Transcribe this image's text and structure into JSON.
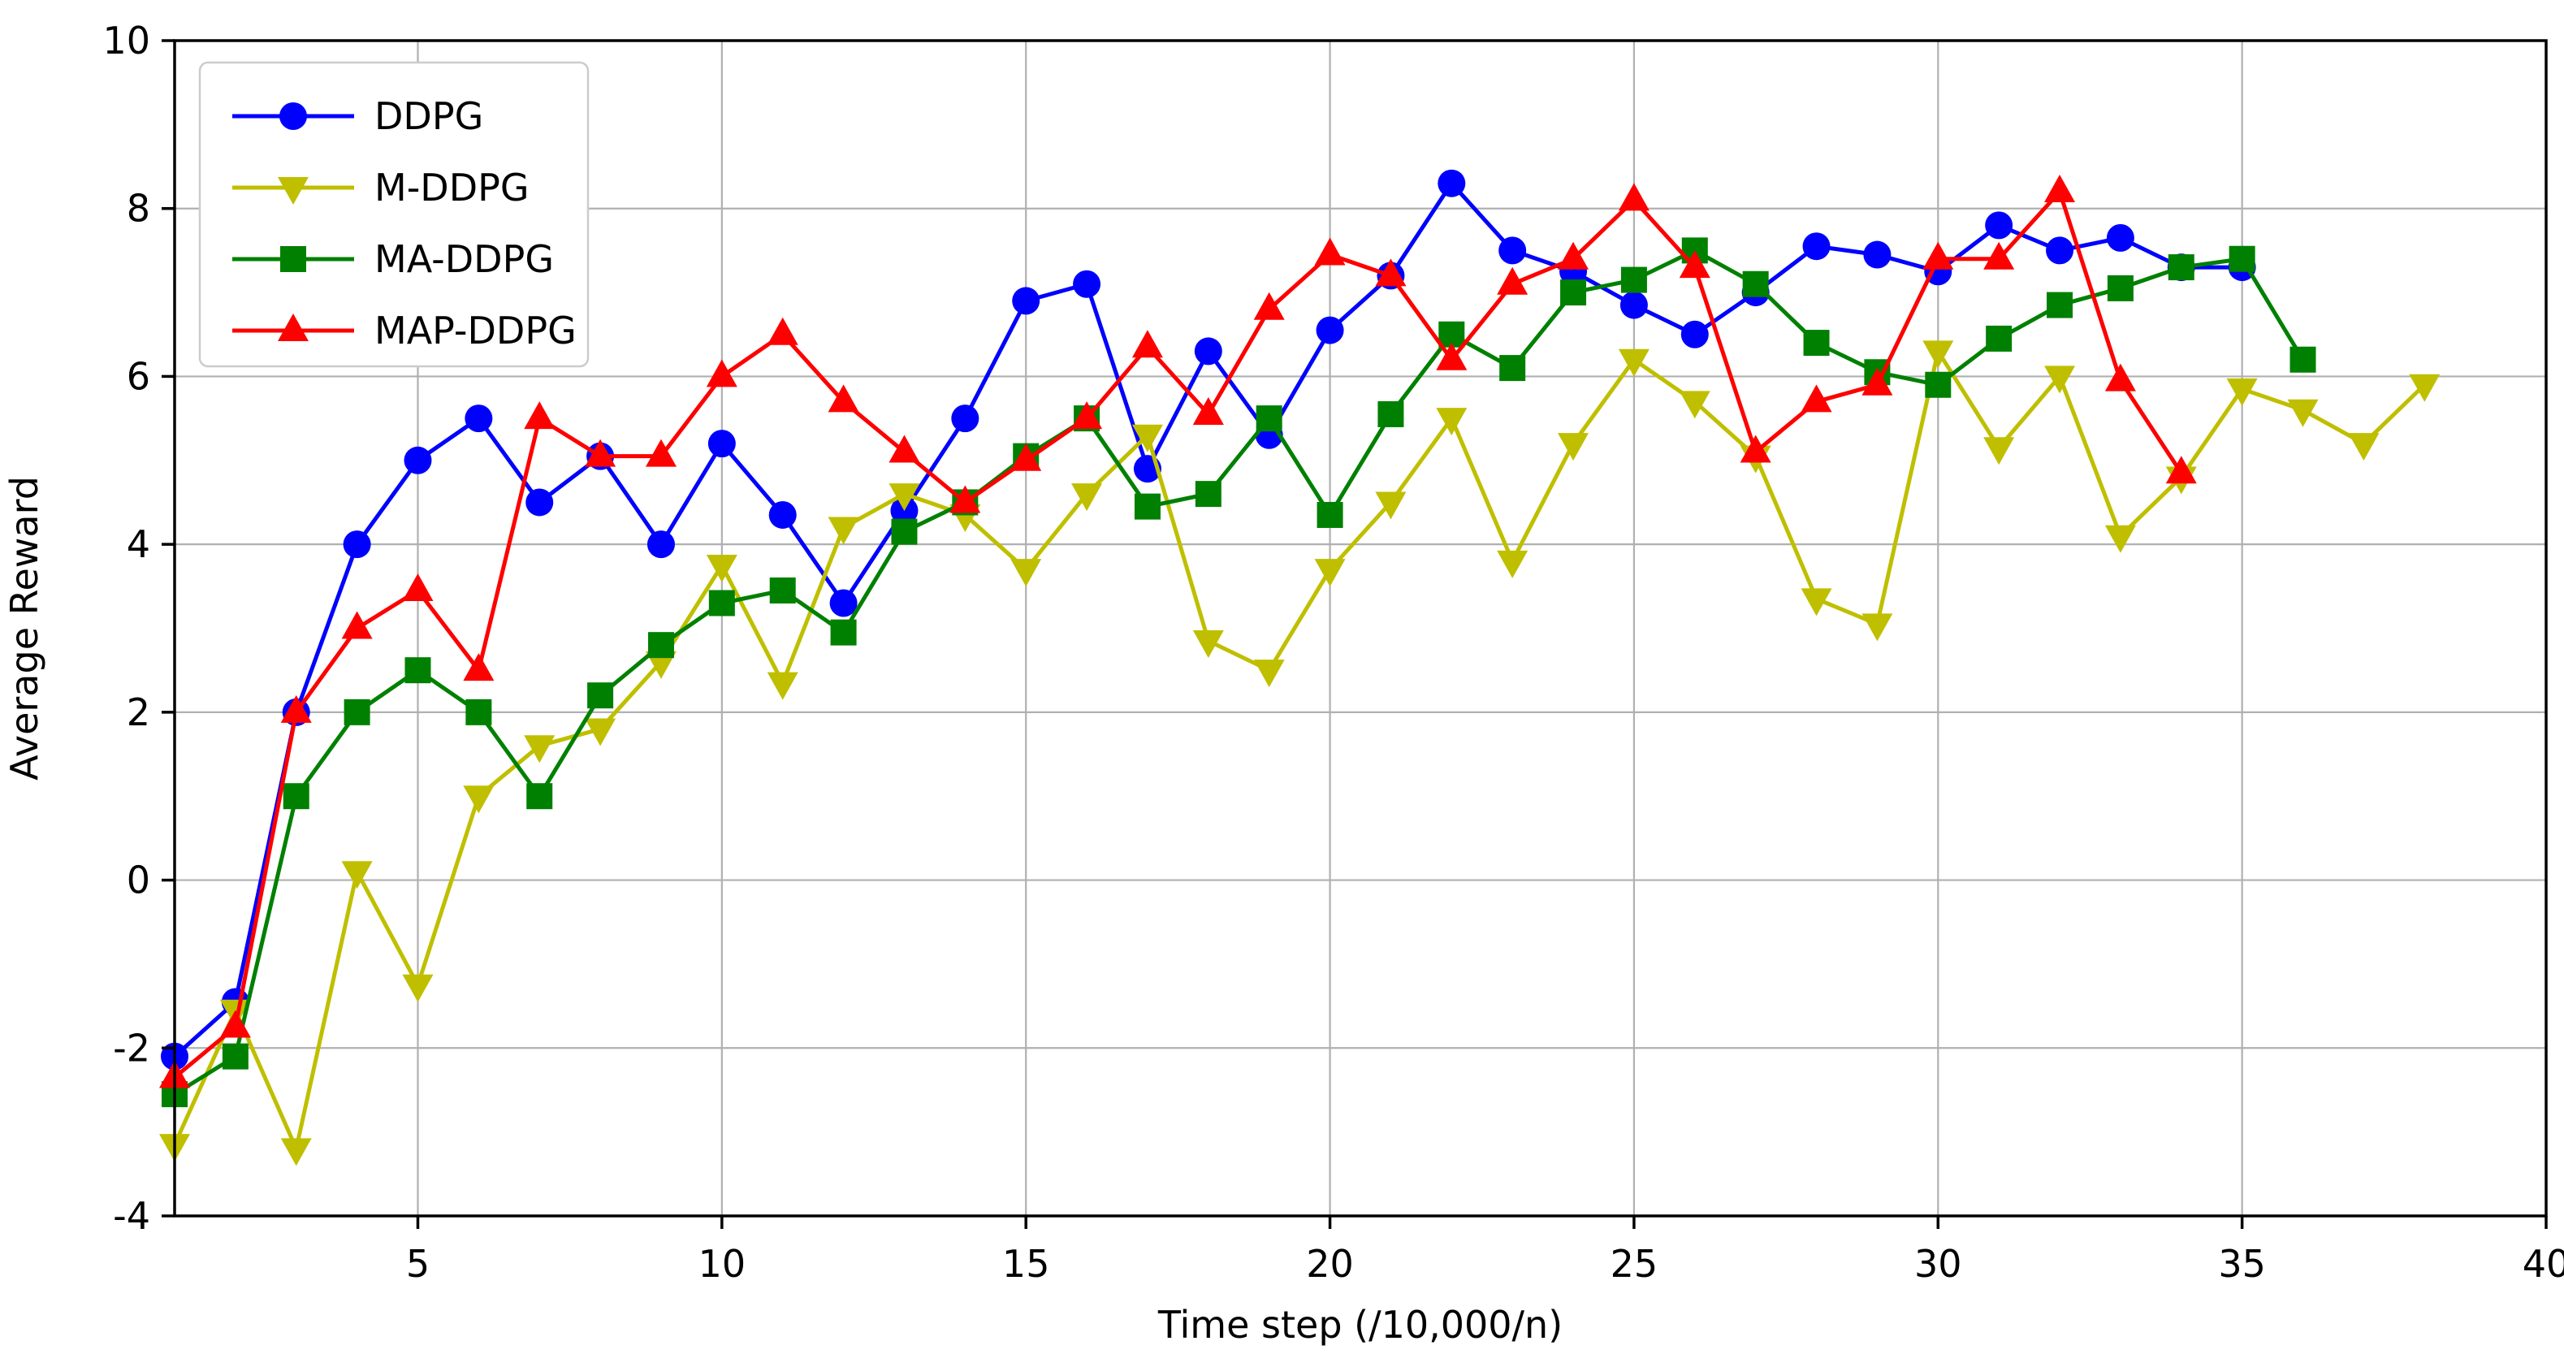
{
  "figure": {
    "background": "#ffffff",
    "grid_color": "#b0b0b0",
    "spine_color": "#000000"
  },
  "chart_data": {
    "type": "line",
    "title": "",
    "xlabel": "Time step (/10,000/n)",
    "ylabel": "Average Reward",
    "xlim": [
      1,
      40
    ],
    "ylim": [
      -4,
      10
    ],
    "xticks": [
      5,
      10,
      15,
      20,
      25,
      30,
      35,
      40
    ],
    "yticks": [
      -4,
      -2,
      0,
      2,
      4,
      6,
      8,
      10
    ],
    "grid": true,
    "legend_position": "upper-left",
    "x_start": 1,
    "x_step": 1,
    "series": [
      {
        "name": "DDPG",
        "color": "#0000ff",
        "marker": "circle",
        "values": [
          -2.1,
          -1.45,
          2.0,
          4.0,
          5.0,
          5.5,
          4.5,
          5.05,
          4.0,
          5.2,
          4.35,
          3.3,
          4.4,
          5.5,
          6.9,
          7.1,
          4.9,
          6.3,
          5.3,
          6.55,
          7.2,
          8.3,
          7.5,
          7.25,
          6.85,
          6.5,
          7.0,
          7.55,
          7.45,
          7.25,
          7.8,
          7.5,
          7.65,
          7.3,
          7.3
        ]
      },
      {
        "name": "M-DDPG",
        "color": "#bfbf00",
        "marker": "triangle-down",
        "values": [
          -3.15,
          -1.55,
          -3.2,
          0.1,
          -1.25,
          1.0,
          1.6,
          1.8,
          2.6,
          3.75,
          2.35,
          4.2,
          4.6,
          4.35,
          3.7,
          4.6,
          5.3,
          2.85,
          2.5,
          3.7,
          4.5,
          5.5,
          3.8,
          5.2,
          6.2,
          5.7,
          5.05,
          3.35,
          3.05,
          6.3,
          5.15,
          6.0,
          4.1,
          4.8,
          5.85,
          5.6,
          5.2,
          5.9
        ]
      },
      {
        "name": "MA-DDPG",
        "color": "#008000",
        "marker": "square",
        "values": [
          -2.55,
          -2.1,
          1.0,
          2.0,
          2.5,
          2.0,
          1.0,
          2.2,
          2.8,
          3.3,
          3.45,
          2.95,
          4.15,
          4.5,
          5.05,
          5.5,
          4.45,
          4.6,
          5.5,
          4.35,
          5.55,
          6.5,
          6.1,
          7.0,
          7.15,
          7.5,
          7.1,
          6.4,
          6.05,
          5.9,
          6.45,
          6.85,
          7.05,
          7.3,
          7.4,
          6.2
        ]
      },
      {
        "name": "MAP-DDPG",
        "color": "#ff0000",
        "marker": "triangle-up",
        "values": [
          -2.35,
          -1.75,
          2.0,
          3.0,
          3.45,
          2.5,
          5.5,
          5.05,
          5.05,
          6.0,
          6.5,
          5.7,
          5.1,
          4.5,
          5.0,
          5.5,
          6.35,
          5.55,
          6.8,
          7.45,
          7.2,
          6.2,
          7.1,
          7.4,
          8.1,
          7.3,
          5.1,
          5.7,
          5.9,
          7.4,
          7.4,
          8.2,
          5.95,
          4.85
        ]
      }
    ]
  }
}
